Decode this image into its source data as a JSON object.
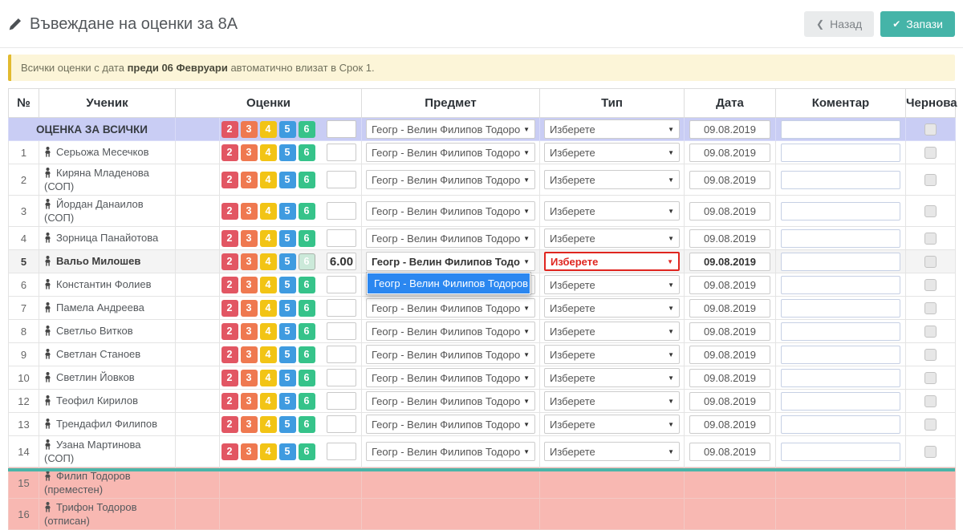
{
  "header": {
    "title": "Въвеждане на оценки за 8А",
    "back_label": "Назад",
    "save_label": "Запази"
  },
  "icons": {
    "back_chevron": "❮",
    "save_check": "✔",
    "select_arrow": "▼"
  },
  "alert": {
    "prefix": "Всички оценки с дата ",
    "bold": "преди 06 Февруари",
    "suffix": " автоматично влизат в Срок 1."
  },
  "table": {
    "columns": [
      "№",
      "Ученик",
      "Оценки",
      "Предмет",
      "Тип",
      "Дата",
      "Коментар",
      "Чернова"
    ],
    "grade_buttons": [
      "2",
      "3",
      "4",
      "5",
      "6"
    ],
    "subject_option": "Геогр - Велин Филипов Тодоров",
    "type_placeholder": "Изберете",
    "date_value": "09.08.2019",
    "rows": [
      {
        "num": "",
        "name": "ОЦЕНКА ЗА ВСИЧКИ",
        "state": "all"
      },
      {
        "num": "1",
        "name": "Серьожа Месечков",
        "state": "normal"
      },
      {
        "num": "2",
        "name": "Киряна Младенова (СОП)",
        "state": "normal"
      },
      {
        "num": "3",
        "name": "Йордан Данаилов (СОП)",
        "state": "normal"
      },
      {
        "num": "4",
        "name": "Зорница Панайотова",
        "state": "normal"
      },
      {
        "num": "5",
        "name": "Вальо Милошев",
        "state": "selected",
        "grade_value": "6.00",
        "selected_grade": "6",
        "type_error": true,
        "dropdown_open": true
      },
      {
        "num": "6",
        "name": "Константин Фолиев",
        "state": "normal"
      },
      {
        "num": "7",
        "name": "Памела Андреева",
        "state": "normal"
      },
      {
        "num": "8",
        "name": "Светльо Витков",
        "state": "normal"
      },
      {
        "num": "9",
        "name": "Светлан Станоев",
        "state": "normal"
      },
      {
        "num": "10",
        "name": "Светлин Йовков",
        "state": "normal"
      },
      {
        "num": "12",
        "name": "Теофил Кирилов",
        "state": "normal"
      },
      {
        "num": "13",
        "name": "Трендафил Филипов",
        "state": "normal"
      },
      {
        "num": "14",
        "name": "Узана Мартинова (СОП)",
        "state": "normal"
      },
      {
        "num": "15",
        "name": "Филип Тодоров (преместен)",
        "state": "inactive"
      },
      {
        "num": "16",
        "name": "Трифон Тодоров (отписан)",
        "state": "inactive"
      }
    ]
  },
  "dropdown": {
    "options": [
      "Геогр - Велин Филипов Тодоров"
    ]
  },
  "colors": {
    "accent_teal": "#45b4a8",
    "grade_2": "#e25663",
    "grade_3": "#ef7950",
    "grade_4": "#f2c415",
    "grade_5": "#3f9be0",
    "grade_6": "#36c38a",
    "grade_selected_bg": "#cbe9d9",
    "error_red": "#df251f",
    "dropdown_highlight": "#2b87f0",
    "all_row_bg": "#c9cdf4",
    "inactive_row_bg": "#f8b8b2",
    "alert_bg": "#fcf5d8",
    "alert_border": "#e2ba2f"
  }
}
